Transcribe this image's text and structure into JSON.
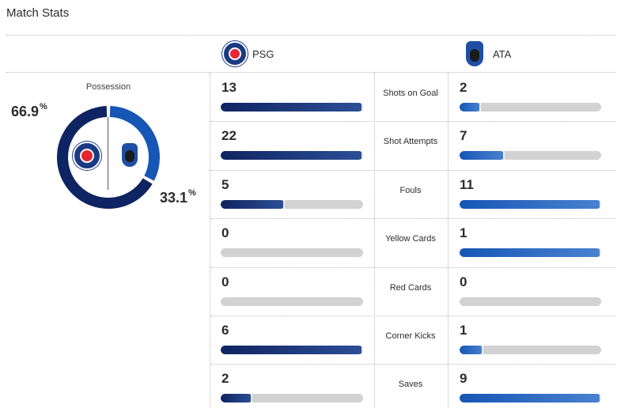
{
  "header": {
    "title": "Match Stats"
  },
  "teams": {
    "home": {
      "name": "PSG",
      "logo_icon": "psg-crest-icon",
      "color": "#0f2462"
    },
    "away": {
      "name": "ATA",
      "logo_icon": "atalanta-crest-icon",
      "color": "#1656b5"
    }
  },
  "possession": {
    "label": "Possession",
    "home_value": "66.9",
    "away_value": "33.1",
    "unit": "%",
    "home_fraction": 0.669,
    "away_fraction": 0.331
  },
  "stats": [
    {
      "label": "Shots on Goal",
      "home": "13",
      "away": "2",
      "home_fill": 1.0,
      "away_fill": 0.15
    },
    {
      "label": "Shot Attempts",
      "home": "22",
      "away": "7",
      "home_fill": 1.0,
      "away_fill": 0.32
    },
    {
      "label": "Fouls",
      "home": "5",
      "away": "11",
      "home_fill": 0.45,
      "away_fill": 1.0
    },
    {
      "label": "Yellow Cards",
      "home": "0",
      "away": "1",
      "home_fill": 0.0,
      "away_fill": 1.0
    },
    {
      "label": "Red Cards",
      "home": "0",
      "away": "0",
      "home_fill": 0.0,
      "away_fill": 0.0
    },
    {
      "label": "Corner Kicks",
      "home": "6",
      "away": "1",
      "home_fill": 1.0,
      "away_fill": 0.17
    },
    {
      "label": "Saves",
      "home": "2",
      "away": "9",
      "home_fill": 0.22,
      "away_fill": 1.0
    }
  ]
}
